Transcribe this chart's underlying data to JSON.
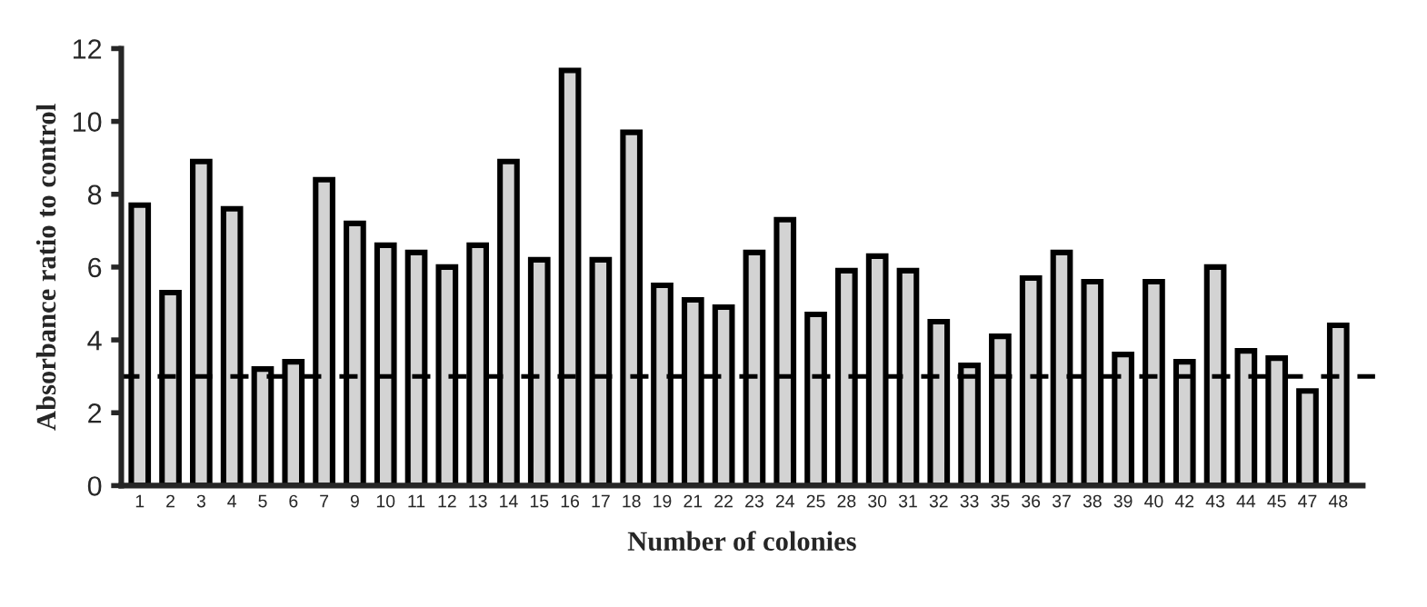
{
  "chart_data": {
    "type": "bar",
    "xlabel": "Number of colonies",
    "ylabel": "Absorbance ratio to control",
    "categories": [
      "1",
      "2",
      "3",
      "4",
      "5",
      "6",
      "7",
      "9",
      "10",
      "11",
      "12",
      "13",
      "14",
      "15",
      "16",
      "17",
      "18",
      "19",
      "21",
      "22",
      "23",
      "24",
      "25",
      "28",
      "30",
      "31",
      "32",
      "33",
      "35",
      "36",
      "37",
      "38",
      "39",
      "40",
      "42",
      "43",
      "44",
      "45",
      "47",
      "48"
    ],
    "values": [
      7.7,
      5.3,
      8.9,
      7.6,
      3.2,
      3.4,
      8.4,
      7.2,
      6.6,
      6.4,
      6.0,
      6.6,
      8.9,
      6.2,
      11.4,
      6.2,
      9.7,
      5.5,
      5.1,
      4.9,
      6.4,
      7.3,
      4.7,
      5.9,
      6.3,
      5.9,
      4.5,
      3.3,
      4.1,
      5.7,
      6.4,
      5.6,
      3.6,
      5.6,
      3.4,
      6.0,
      3.7,
      3.5,
      2.6,
      4.4
    ],
    "color": "#d3d3d3",
    "ylim": [
      0,
      12
    ],
    "yticks": [
      0,
      2,
      4,
      6,
      8,
      10,
      12
    ],
    "grid": false,
    "ref_lines": [
      {
        "axis": "y",
        "value": 3,
        "line_style": "dashed",
        "color": "#000000"
      }
    ]
  }
}
